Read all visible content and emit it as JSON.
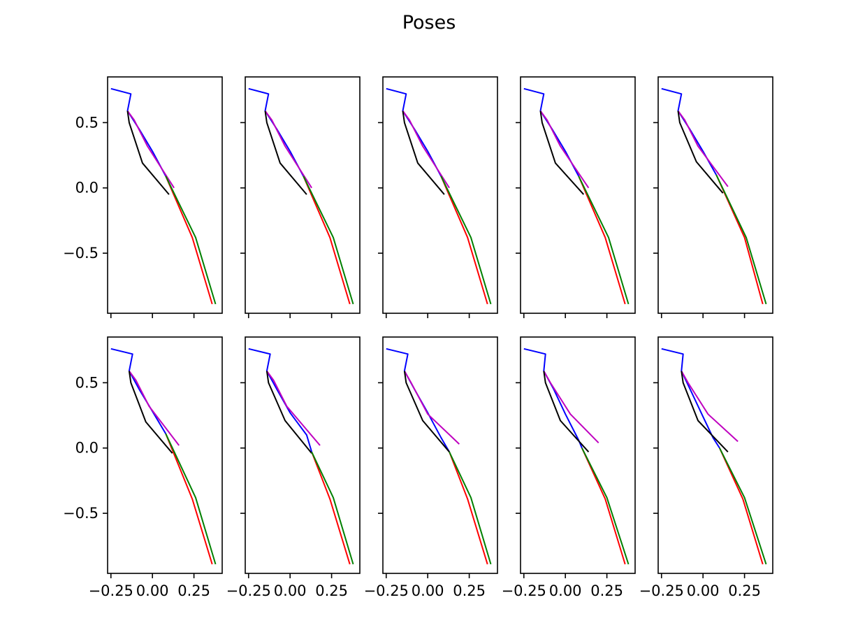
{
  "figure": {
    "title": "Poses"
  },
  "chart_data": {
    "type": "line",
    "title": "Poses",
    "xlabel": "",
    "ylabel": "",
    "xlim": [
      -0.27,
      0.42
    ],
    "ylim": [
      -0.96,
      0.85
    ],
    "xticks": [
      -0.25,
      0.0,
      0.25
    ],
    "xtick_labels": [
      "−0.25",
      "0.00",
      "0.25"
    ],
    "yticks": [
      0.5,
      0.0,
      -0.5
    ],
    "ytick_labels": [
      "0.5",
      "0.0",
      "−0.5"
    ],
    "grid": false,
    "layout": {
      "rows": 2,
      "cols": 5
    },
    "series_colors": {
      "blue": "#0000ff",
      "magenta": "#bf00bf",
      "black": "#000000",
      "red": "#ff0000",
      "green": "#008000"
    },
    "panels": [
      {
        "row": 0,
        "col": 0,
        "limbs": {
          "blue": [
            [
              -0.25,
              0.76
            ],
            [
              -0.13,
              0.72
            ],
            [
              -0.15,
              0.59
            ],
            [
              -0.08,
              0.45
            ],
            [
              0.0,
              0.28
            ],
            [
              0.08,
              0.09
            ]
          ],
          "magenta": [
            [
              -0.15,
              0.59
            ],
            [
              -0.11,
              0.52
            ],
            [
              -0.03,
              0.32
            ],
            [
              0.13,
              0.0
            ]
          ],
          "black": [
            [
              -0.15,
              0.59
            ],
            [
              -0.14,
              0.5
            ],
            [
              -0.06,
              0.19
            ],
            [
              0.1,
              -0.05
            ]
          ],
          "red": [
            [
              0.08,
              0.09
            ],
            [
              0.24,
              -0.38
            ],
            [
              0.36,
              -0.89
            ]
          ],
          "green": [
            [
              0.08,
              0.09
            ],
            [
              0.26,
              -0.38
            ],
            [
              0.38,
              -0.89
            ]
          ]
        }
      },
      {
        "row": 0,
        "col": 1,
        "limbs": {
          "blue": [
            [
              -0.25,
              0.76
            ],
            [
              -0.13,
              0.72
            ],
            [
              -0.15,
              0.59
            ],
            [
              -0.08,
              0.45
            ],
            [
              0.0,
              0.28
            ],
            [
              0.08,
              0.09
            ]
          ],
          "magenta": [
            [
              -0.15,
              0.59
            ],
            [
              -0.11,
              0.52
            ],
            [
              -0.03,
              0.32
            ],
            [
              0.13,
              0.0
            ]
          ],
          "black": [
            [
              -0.15,
              0.59
            ],
            [
              -0.14,
              0.5
            ],
            [
              -0.06,
              0.19
            ],
            [
              0.1,
              -0.05
            ]
          ],
          "red": [
            [
              0.08,
              0.09
            ],
            [
              0.24,
              -0.38
            ],
            [
              0.36,
              -0.89
            ]
          ],
          "green": [
            [
              0.08,
              0.09
            ],
            [
              0.26,
              -0.38
            ],
            [
              0.38,
              -0.89
            ]
          ]
        }
      },
      {
        "row": 0,
        "col": 2,
        "limbs": {
          "blue": [
            [
              -0.25,
              0.76
            ],
            [
              -0.13,
              0.72
            ],
            [
              -0.15,
              0.59
            ],
            [
              -0.08,
              0.45
            ],
            [
              0.0,
              0.28
            ],
            [
              0.08,
              0.09
            ]
          ],
          "magenta": [
            [
              -0.15,
              0.59
            ],
            [
              -0.11,
              0.52
            ],
            [
              -0.03,
              0.32
            ],
            [
              0.13,
              0.0
            ]
          ],
          "black": [
            [
              -0.15,
              0.59
            ],
            [
              -0.14,
              0.5
            ],
            [
              -0.06,
              0.19
            ],
            [
              0.1,
              -0.05
            ]
          ],
          "red": [
            [
              0.08,
              0.09
            ],
            [
              0.24,
              -0.38
            ],
            [
              0.36,
              -0.89
            ]
          ],
          "green": [
            [
              0.08,
              0.09
            ],
            [
              0.26,
              -0.38
            ],
            [
              0.38,
              -0.89
            ]
          ]
        }
      },
      {
        "row": 0,
        "col": 3,
        "limbs": {
          "blue": [
            [
              -0.25,
              0.76
            ],
            [
              -0.13,
              0.72
            ],
            [
              -0.15,
              0.59
            ],
            [
              -0.08,
              0.45
            ],
            [
              0.0,
              0.28
            ],
            [
              0.08,
              0.09
            ]
          ],
          "magenta": [
            [
              -0.15,
              0.59
            ],
            [
              -0.11,
              0.52
            ],
            [
              -0.03,
              0.32
            ],
            [
              0.14,
              0.0
            ]
          ],
          "black": [
            [
              -0.15,
              0.59
            ],
            [
              -0.14,
              0.5
            ],
            [
              -0.06,
              0.19
            ],
            [
              0.11,
              -0.05
            ]
          ],
          "red": [
            [
              0.08,
              0.09
            ],
            [
              0.24,
              -0.38
            ],
            [
              0.36,
              -0.89
            ]
          ],
          "green": [
            [
              0.08,
              0.09
            ],
            [
              0.26,
              -0.38
            ],
            [
              0.38,
              -0.89
            ]
          ]
        }
      },
      {
        "row": 0,
        "col": 4,
        "limbs": {
          "blue": [
            [
              -0.25,
              0.76
            ],
            [
              -0.13,
              0.72
            ],
            [
              -0.15,
              0.59
            ],
            [
              -0.08,
              0.45
            ],
            [
              0.0,
              0.28
            ],
            [
              0.08,
              0.1
            ]
          ],
          "magenta": [
            [
              -0.15,
              0.59
            ],
            [
              -0.11,
              0.52
            ],
            [
              -0.03,
              0.32
            ],
            [
              0.15,
              0.01
            ]
          ],
          "black": [
            [
              -0.15,
              0.59
            ],
            [
              -0.14,
              0.5
            ],
            [
              -0.04,
              0.2
            ],
            [
              0.12,
              -0.04
            ]
          ],
          "red": [
            [
              0.08,
              0.1
            ],
            [
              0.25,
              -0.38
            ],
            [
              0.36,
              -0.89
            ]
          ],
          "green": [
            [
              0.08,
              0.1
            ],
            [
              0.26,
              -0.38
            ],
            [
              0.38,
              -0.89
            ]
          ]
        }
      },
      {
        "row": 1,
        "col": 0,
        "limbs": {
          "blue": [
            [
              -0.25,
              0.76
            ],
            [
              -0.12,
              0.72
            ],
            [
              -0.14,
              0.59
            ],
            [
              -0.08,
              0.45
            ],
            [
              0.0,
              0.28
            ],
            [
              0.08,
              0.11
            ]
          ],
          "magenta": [
            [
              -0.14,
              0.59
            ],
            [
              -0.1,
              0.52
            ],
            [
              -0.02,
              0.32
            ],
            [
              0.16,
              0.02
            ]
          ],
          "black": [
            [
              -0.14,
              0.59
            ],
            [
              -0.13,
              0.5
            ],
            [
              -0.04,
              0.2
            ],
            [
              0.12,
              -0.04
            ]
          ],
          "red": [
            [
              0.08,
              0.11
            ],
            [
              0.24,
              -0.39
            ],
            [
              0.36,
              -0.89
            ]
          ],
          "green": [
            [
              0.08,
              0.11
            ],
            [
              0.26,
              -0.38
            ],
            [
              0.38,
              -0.89
            ]
          ]
        }
      },
      {
        "row": 1,
        "col": 1,
        "limbs": {
          "blue": [
            [
              -0.25,
              0.76
            ],
            [
              -0.12,
              0.72
            ],
            [
              -0.14,
              0.59
            ],
            [
              -0.08,
              0.45
            ],
            [
              0.0,
              0.27
            ],
            [
              0.1,
              0.1
            ],
            [
              0.13,
              -0.03
            ]
          ],
          "magenta": [
            [
              -0.14,
              0.59
            ],
            [
              -0.1,
              0.52
            ],
            [
              -0.02,
              0.32
            ],
            [
              0.18,
              0.02
            ]
          ],
          "black": [
            [
              -0.14,
              0.59
            ],
            [
              -0.13,
              0.5
            ],
            [
              -0.03,
              0.21
            ],
            [
              0.13,
              -0.04
            ]
          ],
          "red": [
            [
              0.13,
              -0.03
            ],
            [
              0.24,
              -0.39
            ],
            [
              0.36,
              -0.89
            ]
          ],
          "green": [
            [
              0.13,
              -0.03
            ],
            [
              0.26,
              -0.38
            ],
            [
              0.38,
              -0.89
            ]
          ]
        }
      },
      {
        "row": 1,
        "col": 2,
        "limbs": {
          "blue": [
            [
              -0.25,
              0.76
            ],
            [
              -0.12,
              0.72
            ],
            [
              -0.14,
              0.59
            ],
            [
              -0.08,
              0.45
            ],
            [
              0.0,
              0.27
            ],
            [
              0.08,
              0.08
            ],
            [
              0.13,
              -0.03
            ]
          ],
          "magenta": [
            [
              -0.14,
              0.59
            ],
            [
              -0.1,
              0.5
            ],
            [
              0.0,
              0.26
            ],
            [
              0.19,
              0.03
            ]
          ],
          "black": [
            [
              -0.14,
              0.59
            ],
            [
              -0.13,
              0.5
            ],
            [
              -0.03,
              0.21
            ],
            [
              0.13,
              -0.03
            ]
          ],
          "red": [
            [
              0.13,
              -0.03
            ],
            [
              0.24,
              -0.39
            ],
            [
              0.36,
              -0.89
            ]
          ],
          "green": [
            [
              0.13,
              -0.03
            ],
            [
              0.26,
              -0.38
            ],
            [
              0.38,
              -0.89
            ]
          ]
        }
      },
      {
        "row": 1,
        "col": 3,
        "limbs": {
          "blue": [
            [
              -0.25,
              0.76
            ],
            [
              -0.12,
              0.72
            ],
            [
              -0.13,
              0.59
            ],
            [
              -0.07,
              0.45
            ],
            [
              0.0,
              0.26
            ],
            [
              0.08,
              0.06
            ],
            [
              0.1,
              0.0
            ]
          ],
          "magenta": [
            [
              -0.13,
              0.59
            ],
            [
              -0.09,
              0.5
            ],
            [
              0.03,
              0.26
            ],
            [
              0.2,
              0.04
            ]
          ],
          "black": [
            [
              -0.13,
              0.59
            ],
            [
              -0.12,
              0.5
            ],
            [
              -0.03,
              0.21
            ],
            [
              0.14,
              -0.03
            ]
          ],
          "red": [
            [
              0.1,
              0.0
            ],
            [
              0.24,
              -0.39
            ],
            [
              0.36,
              -0.89
            ]
          ],
          "green": [
            [
              0.1,
              0.0
            ],
            [
              0.25,
              -0.38
            ],
            [
              0.38,
              -0.89
            ]
          ]
        }
      },
      {
        "row": 1,
        "col": 4,
        "limbs": {
          "blue": [
            [
              -0.25,
              0.76
            ],
            [
              -0.12,
              0.72
            ],
            [
              -0.13,
              0.59
            ],
            [
              -0.07,
              0.43
            ],
            [
              0.0,
              0.24
            ],
            [
              0.06,
              0.08
            ],
            [
              0.1,
              0.0
            ]
          ],
          "magenta": [
            [
              -0.13,
              0.59
            ],
            [
              -0.09,
              0.5
            ],
            [
              0.03,
              0.26
            ],
            [
              0.21,
              0.05
            ]
          ],
          "black": [
            [
              -0.13,
              0.59
            ],
            [
              -0.12,
              0.5
            ],
            [
              -0.03,
              0.21
            ],
            [
              0.15,
              -0.03
            ]
          ],
          "red": [
            [
              0.1,
              0.0
            ],
            [
              0.24,
              -0.39
            ],
            [
              0.36,
              -0.89
            ]
          ],
          "green": [
            [
              0.1,
              0.0
            ],
            [
              0.25,
              -0.38
            ],
            [
              0.38,
              -0.89
            ]
          ]
        }
      }
    ]
  }
}
